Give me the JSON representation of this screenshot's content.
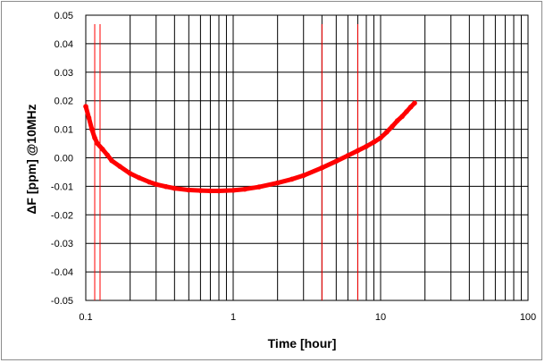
{
  "chart_data": {
    "type": "scatter",
    "title": "",
    "xlabel": "Time [hour]",
    "ylabel": "ΔF [ppm] @10MHz",
    "x_scale": "log",
    "xlim": [
      0.1,
      100
    ],
    "ylim": [
      -0.05,
      0.05
    ],
    "grid": true,
    "legend": "none",
    "x_ticks": [
      "0.1",
      "1",
      "10",
      "100"
    ],
    "y_ticks": [
      "0.05",
      "0.04",
      "0.03",
      "0.02",
      "0.01",
      "0.00",
      "-0.01",
      "-0.02",
      "-0.03",
      "-0.04",
      "-0.05"
    ],
    "marker_color": "#ff0000",
    "series": [
      {
        "x": [
          0.1,
          0.105,
          0.11,
          0.115,
          0.12,
          0.13,
          0.14,
          0.15,
          0.17,
          0.2,
          0.23,
          0.27,
          0.3,
          0.35,
          0.4,
          0.5,
          0.6,
          0.7,
          0.8,
          1.0,
          1.2,
          1.5,
          2.0,
          2.5,
          3.0,
          4.0,
          5.0,
          6.0,
          7.0,
          8.0,
          9.0,
          10.0,
          11.0,
          12.0,
          13.0,
          14.0,
          15.0,
          16.0,
          17.0
        ],
        "y": [
          0.018,
          0.014,
          0.01,
          0.007,
          0.005,
          0.003,
          0.001,
          -0.001,
          -0.003,
          -0.0055,
          -0.007,
          -0.0085,
          -0.0093,
          -0.0101,
          -0.0107,
          -0.0113,
          -0.0115,
          -0.0116,
          -0.0116,
          -0.0114,
          -0.011,
          -0.0102,
          -0.0088,
          -0.0075,
          -0.0062,
          -0.0035,
          -0.0012,
          0.0008,
          0.0025,
          0.004,
          0.0055,
          0.007,
          0.009,
          0.011,
          0.013,
          0.0145,
          0.0162,
          0.0178,
          0.0192
        ]
      }
    ],
    "vertical_lines_x": [
      0.115,
      0.125,
      4.0,
      7.0
    ]
  }
}
